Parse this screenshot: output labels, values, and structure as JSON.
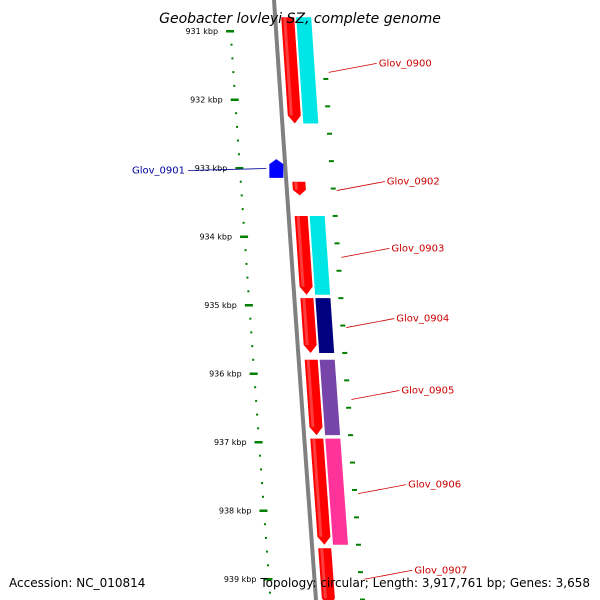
{
  "title": "Geobacter lovleyi SZ, complete genome",
  "accession": "Accession: NC_010814",
  "topology": "Topology: circular; Length: 3,917,761 bp; Genes: 3,658",
  "ticks": [
    {
      "kbp": 931,
      "label": "931 kbp"
    },
    {
      "kbp": 932,
      "label": "932 kbp"
    },
    {
      "kbp": 933,
      "label": "933 kbp"
    },
    {
      "kbp": 934,
      "label": "934 kbp"
    },
    {
      "kbp": 935,
      "label": "935 kbp"
    },
    {
      "kbp": 936,
      "label": "936 kbp"
    },
    {
      "kbp": 937,
      "label": "937 kbp"
    },
    {
      "kbp": 938,
      "label": "938 kbp"
    },
    {
      "kbp": 939,
      "label": "939 kbp"
    }
  ],
  "colors": {
    "forward_gene": "#ff0000",
    "reverse_gene": "#0000ff",
    "backbone": "#808080",
    "ticks": "#008000",
    "cyan": "#00e5e5",
    "navy": "#000080",
    "pink": "#ff3399",
    "purple": "#7744aa",
    "label_forward": "#cc0000",
    "label_reverse": "#000099"
  },
  "genes": [
    {
      "label": "Glov_0900",
      "strand": "+",
      "start_kbp": 930.8,
      "end_kbp": 932.35,
      "category_color": "cyan"
    },
    {
      "label": "Glov_0901",
      "strand": "-",
      "start_kbp": 932.9,
      "end_kbp": 933.1,
      "category_color": ""
    },
    {
      "label": "Glov_0902",
      "strand": "+",
      "start_kbp": 933.2,
      "end_kbp": 933.4,
      "category_color": ""
    },
    {
      "label": "Glov_0903",
      "strand": "+",
      "start_kbp": 933.7,
      "end_kbp": 934.85,
      "category_color": "cyan"
    },
    {
      "label": "Glov_0904",
      "strand": "+",
      "start_kbp": 934.9,
      "end_kbp": 935.7,
      "category_color": "navy"
    },
    {
      "label": "Glov_0905",
      "strand": "+",
      "start_kbp": 935.8,
      "end_kbp": 936.9,
      "category_color": "purple"
    },
    {
      "label": "Glov_0906",
      "strand": "+",
      "start_kbp": 936.95,
      "end_kbp": 938.5,
      "category_color": "pink"
    },
    {
      "label": "Glov_0907",
      "strand": "+",
      "start_kbp": 938.55,
      "end_kbp": 939.4,
      "category_color": ""
    }
  ]
}
